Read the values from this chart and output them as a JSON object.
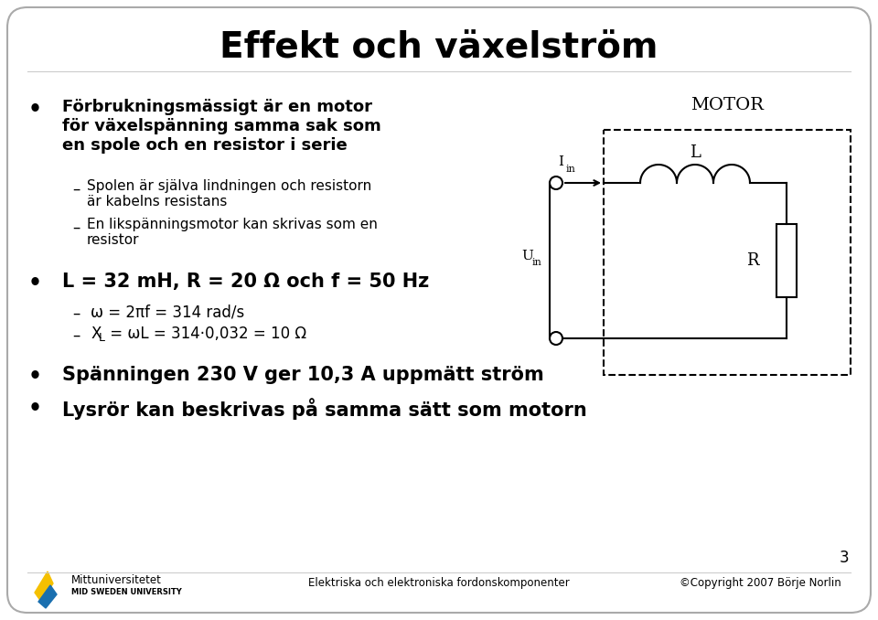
{
  "title": "Effekt och växelström",
  "background_color": "#ffffff",
  "border_color": "#cccccc",
  "bullet1_bold": "Förbrukningsmässigt är en motor\nför växelspänning samma sak som\nen spole och en resistor i serie",
  "sub1a": "Spolen är själva lindningen och resistorn\när kabelns resistans",
  "sub1b": "En likspänningsmotor kan skrivas som en\nresistor",
  "bullet2_bold": "L = 32 mH, R = 20 Ω och f = 50 Hz",
  "sub2a": "ω = 2πf = 314 rad/s",
  "sub2b": "X",
  "sub2b_L": "L",
  "sub2b_rest": " = ωL = 314·0,032 = 10 Ω",
  "bullet3_bold": "Spänningen 230 V ger 10,3 A uppmätt ström",
  "bullet4_bold": "Lysrör kan beskrivas på samma sätt som motorn",
  "footer_center": "Elektriska och elektroniska fordonskomponenter",
  "footer_right": "©Copyright 2007 Börje Norlin",
  "footer_university": "Mittuniversitetet",
  "footer_sub": "MID SWEDEN UNIVERSITY",
  "page_number": "3",
  "motor_label": "MOTOR",
  "circuit_L_label": "L",
  "circuit_R_label": "R",
  "circuit_Iin_label": "I",
  "circuit_Iin_sub": "in",
  "circuit_Uin_label": "U",
  "circuit_Uin_sub": "in"
}
